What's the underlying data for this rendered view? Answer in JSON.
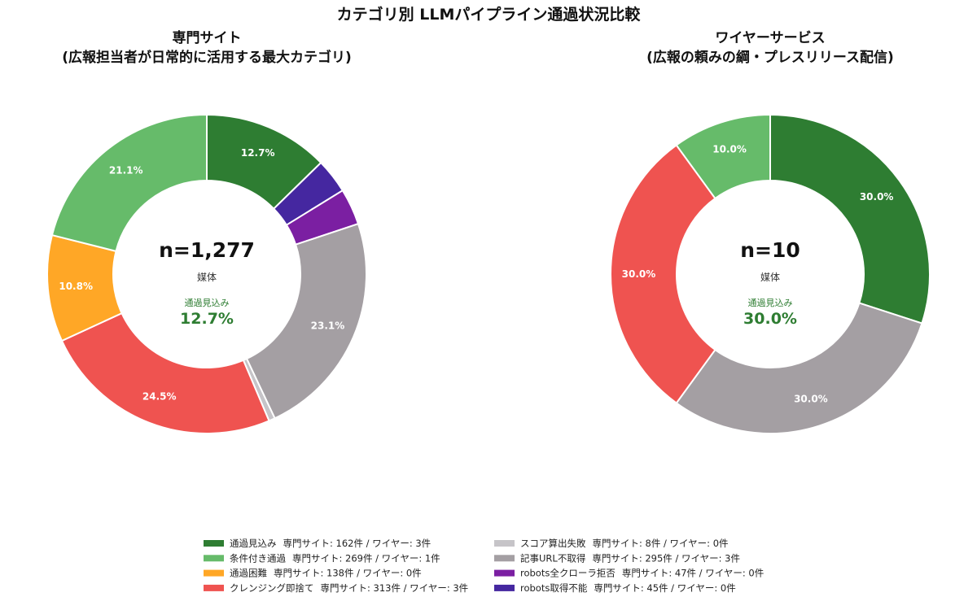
{
  "figure_title": "カテゴリ別 LLMパイプライン通過状況比較",
  "colors": {
    "pass": "#2e7d32",
    "conditional": "#66bb6a",
    "difficult": "#ffa726",
    "cleansing": "#ef5350",
    "score_fail": "#c6c4c8",
    "no_article_url": "#a49fa3",
    "robots_all": "#7b1fa2",
    "robots_unavailable": "#4527a0",
    "center_pass": "#2e7d32"
  },
  "chart_data": [
    {
      "type": "pie",
      "donut": true,
      "title": "専門サイト",
      "subtitle": "(広報担当者が日常的に活用する最大カテゴリ)",
      "center_n": "n=1,277",
      "center_unit": "媒体",
      "center_pass_label": "通過見込み",
      "center_pass_value": "12.7%",
      "slices": [
        {
          "key": "pass",
          "value": 162,
          "label": "12.7%"
        },
        {
          "key": "robots_unavailable",
          "value": 45,
          "label": ""
        },
        {
          "key": "robots_all",
          "value": 47,
          "label": ""
        },
        {
          "key": "no_article_url",
          "value": 295,
          "label": "23.1%"
        },
        {
          "key": "score_fail",
          "value": 8,
          "label": ""
        },
        {
          "key": "cleansing",
          "value": 313,
          "label": "24.5%"
        },
        {
          "key": "difficult",
          "value": 138,
          "label": "10.8%"
        },
        {
          "key": "conditional",
          "value": 269,
          "label": "21.1%"
        }
      ]
    },
    {
      "type": "pie",
      "donut": true,
      "title": "ワイヤーサービス",
      "subtitle": "(広報の頼みの綱・プレスリリース配信)",
      "center_n": "n=10",
      "center_unit": "媒体",
      "center_pass_label": "通過見込み",
      "center_pass_value": "30.0%",
      "slices": [
        {
          "key": "pass",
          "value": 3,
          "label": "30.0%"
        },
        {
          "key": "no_article_url",
          "value": 3,
          "label": "30.0%"
        },
        {
          "key": "cleansing",
          "value": 3,
          "label": "30.0%"
        },
        {
          "key": "conditional",
          "value": 1,
          "label": "10.0%"
        }
      ]
    }
  ],
  "legend": {
    "left": [
      {
        "key": "pass",
        "label": "通過見込み",
        "detail": "専門サイト: 162件 / ワイヤー: 3件"
      },
      {
        "key": "conditional",
        "label": "条件付き通過",
        "detail": "専門サイト: 269件 / ワイヤー: 1件"
      },
      {
        "key": "difficult",
        "label": "通過困難",
        "detail": "専門サイト: 138件 / ワイヤー: 0件"
      },
      {
        "key": "cleansing",
        "label": "クレンジング即捨て",
        "detail": "専門サイト: 313件 / ワイヤー: 3件"
      }
    ],
    "right": [
      {
        "key": "score_fail",
        "label": "スコア算出失敗",
        "detail": "専門サイト: 8件 / ワイヤー: 0件"
      },
      {
        "key": "no_article_url",
        "label": "記事URL不取得",
        "detail": "専門サイト: 295件 / ワイヤー: 3件"
      },
      {
        "key": "robots_all",
        "label": "robots全クローラ拒否",
        "detail": "専門サイト: 47件 / ワイヤー: 0件"
      },
      {
        "key": "robots_unavailable",
        "label": "robots取得不能",
        "detail": "専門サイト: 45件 / ワイヤー: 0件"
      }
    ]
  }
}
